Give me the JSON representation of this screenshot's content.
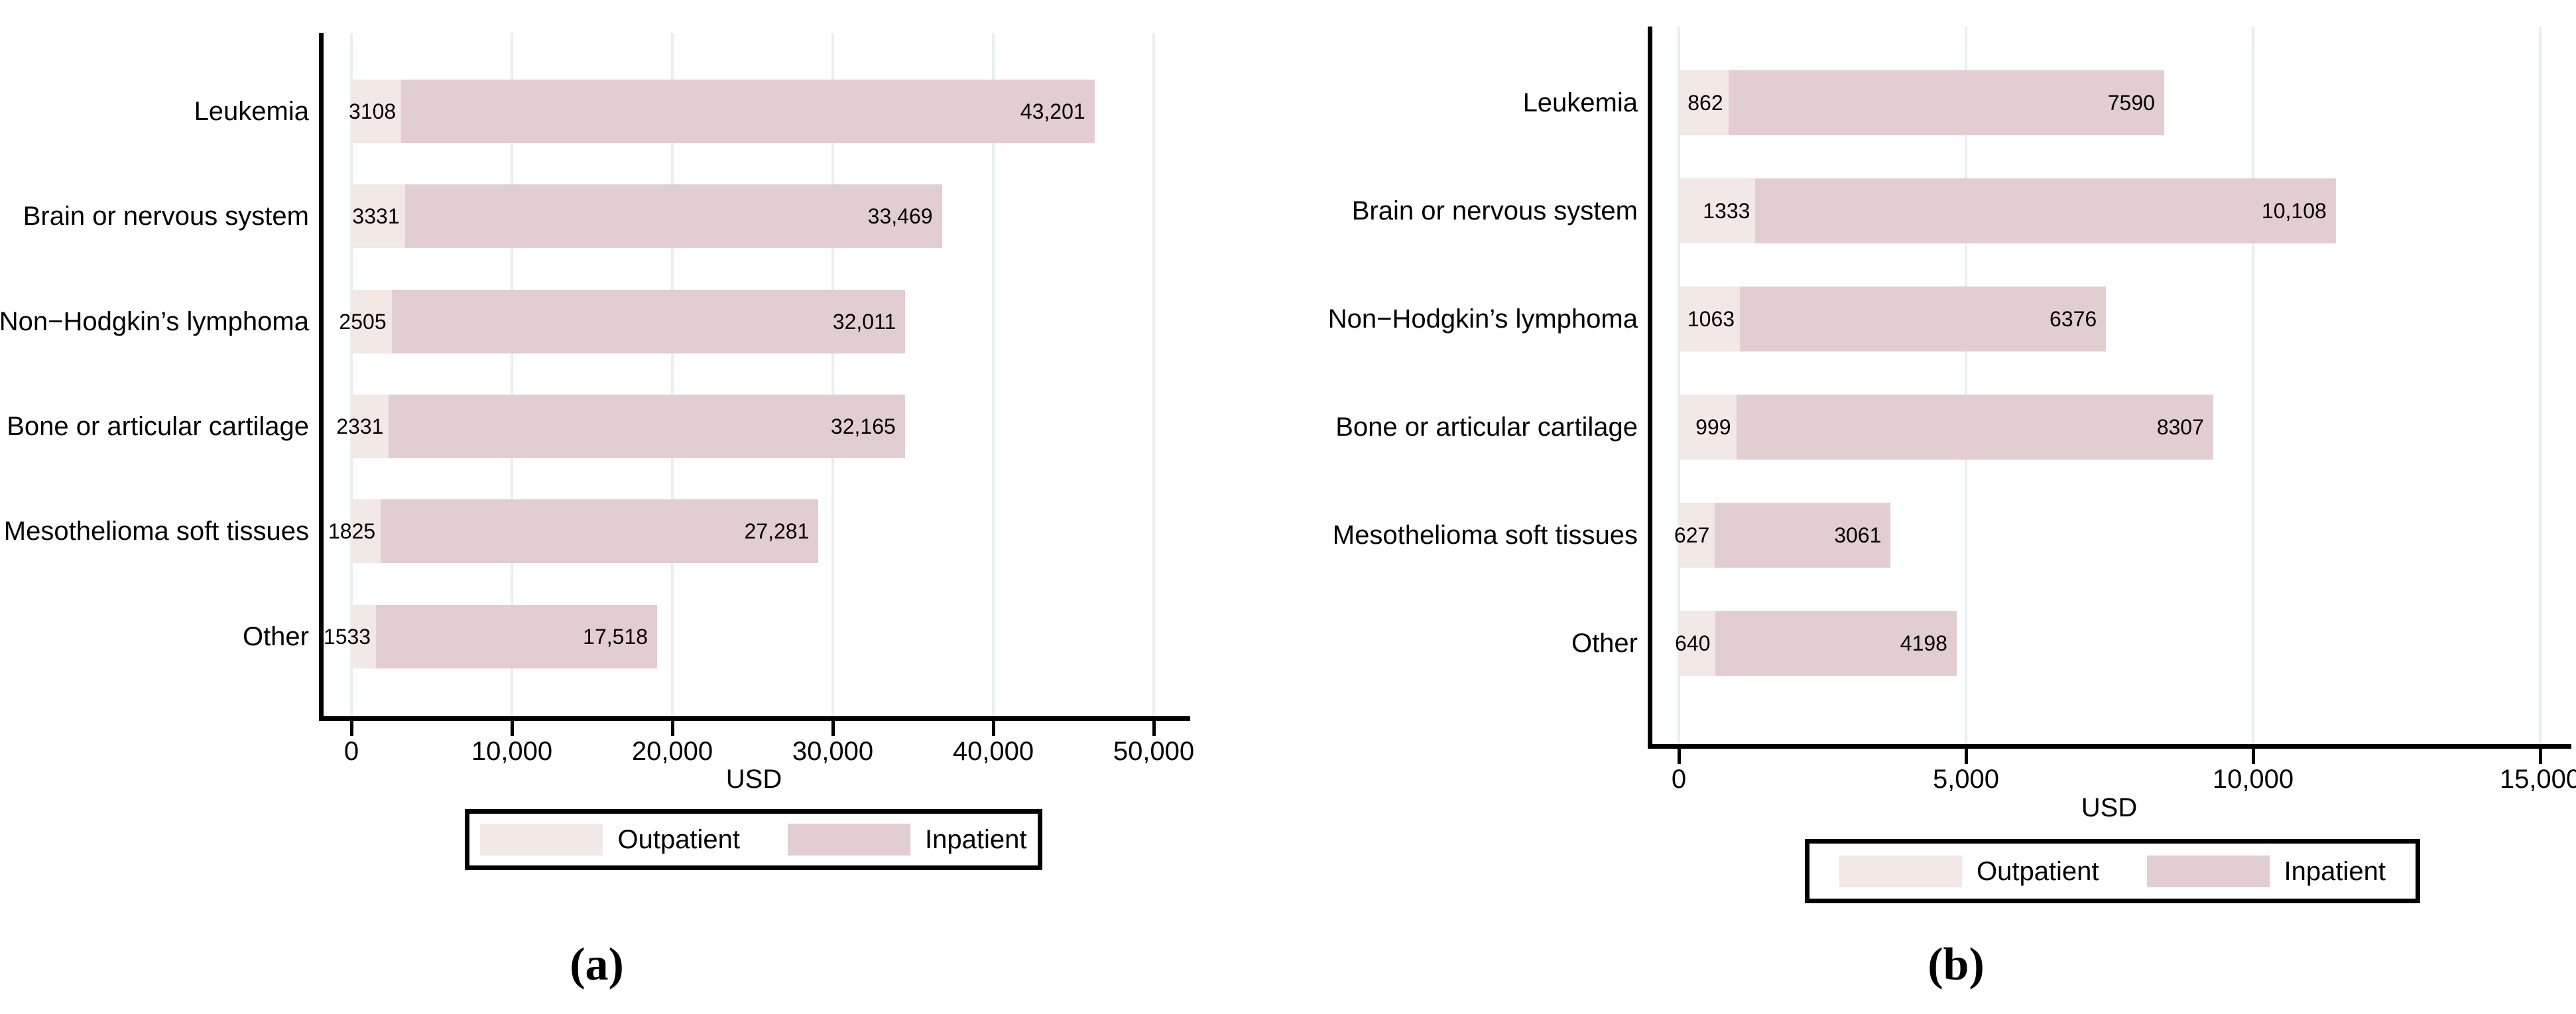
{
  "figure": {
    "background": "#ffffff"
  },
  "colors": {
    "outpatient": "#f2e8e6",
    "inpatient": "#e2cdd0",
    "gridline": "#e8eff2",
    "axis": "#000000",
    "text": "#000000"
  },
  "chart_data": [
    {
      "type": "bar",
      "orientation": "horizontal",
      "stacked": true,
      "panel_label": "(a)",
      "xlabel": "USD",
      "xlim": [
        0,
        50000
      ],
      "grid": true,
      "legend_position": "bottom",
      "xticks": [
        {
          "value": 0,
          "label": "0"
        },
        {
          "value": 10000,
          "label": "10,000"
        },
        {
          "value": 20000,
          "label": "20,000"
        },
        {
          "value": 30000,
          "label": "30,000"
        },
        {
          "value": 40000,
          "label": "40,000"
        },
        {
          "value": 50000,
          "label": "50,000"
        }
      ],
      "categories": [
        "Leukemia",
        "Brain or nervous system",
        "Non−Hodgkin’s lymphoma",
        "Bone or articular cartilage",
        "Mesothelioma soft tissues",
        "Other"
      ],
      "series": [
        {
          "name": "Outpatient",
          "color_key": "outpatient",
          "values": [
            3108,
            3331,
            2505,
            2331,
            1825,
            1533
          ],
          "labels": [
            "3108",
            "3331",
            "2505",
            "2331",
            "1825",
            "1533"
          ]
        },
        {
          "name": "Inpatient",
          "color_key": "inpatient",
          "values": [
            43201,
            33469,
            32011,
            32165,
            27281,
            17518
          ],
          "labels": [
            "43,201",
            "33,469",
            "32,011",
            "32,165",
            "27,281",
            "17,518"
          ]
        }
      ]
    },
    {
      "type": "bar",
      "orientation": "horizontal",
      "stacked": true,
      "panel_label": "(b)",
      "xlabel": "USD",
      "xlim": [
        0,
        15000
      ],
      "grid": true,
      "legend_position": "bottom",
      "xticks": [
        {
          "value": 0,
          "label": "0"
        },
        {
          "value": 5000,
          "label": "5,000"
        },
        {
          "value": 10000,
          "label": "10,000"
        },
        {
          "value": 15000,
          "label": "15,000"
        }
      ],
      "categories": [
        "Leukemia",
        "Brain or nervous system",
        "Non−Hodgkin’s lymphoma",
        "Bone or articular cartilage",
        "Mesothelioma soft tissues",
        "Other"
      ],
      "series": [
        {
          "name": "Outpatient",
          "color_key": "outpatient",
          "values": [
            862,
            1333,
            1063,
            999,
            627,
            640
          ],
          "labels": [
            "862",
            "1333",
            "1063",
            "999",
            "627",
            "640"
          ]
        },
        {
          "name": "Inpatient",
          "color_key": "inpatient",
          "values": [
            7590,
            10108,
            6376,
            8307,
            3061,
            4198
          ],
          "labels": [
            "7590",
            "10,108",
            "6376",
            "8307",
            "3061",
            "4198"
          ]
        }
      ]
    }
  ]
}
